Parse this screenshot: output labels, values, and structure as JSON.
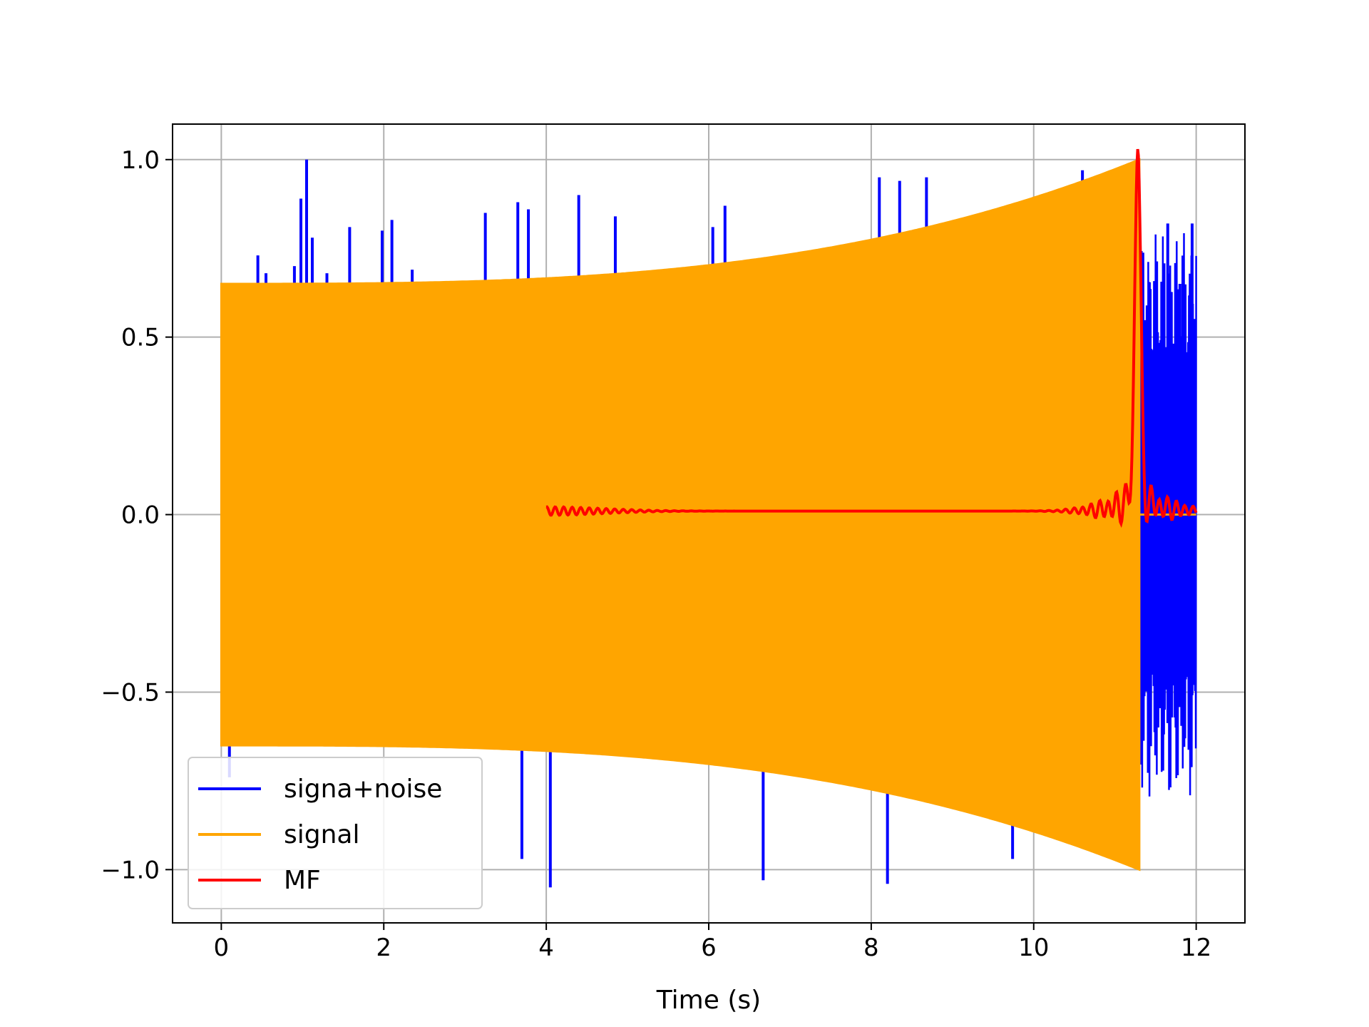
{
  "chart_data": {
    "type": "line",
    "title": "",
    "xlabel": "Time (s)",
    "ylabel": "",
    "xlim": [
      -0.6,
      12.6
    ],
    "ylim": [
      -1.15,
      1.1
    ],
    "xticks": [
      0,
      2,
      4,
      6,
      8,
      10,
      12
    ],
    "yticks": [
      -1.0,
      -0.5,
      0.0,
      0.5,
      1.0
    ],
    "xtick_labels": [
      "0",
      "2",
      "4",
      "6",
      "8",
      "10",
      "12"
    ],
    "ytick_labels": [
      "−1.0",
      "−0.5",
      "0.0",
      "0.5",
      "1.0"
    ],
    "grid": true,
    "legend_position": "lower-left",
    "series": [
      {
        "name": "signa+noise",
        "color": "#0000ff",
        "x_range": [
          0,
          12
        ],
        "description_values": {
          "envelope_start": 0.6,
          "envelope_peak": 1.0,
          "spikes": [
            {
              "x": 0.05,
              "y": 0.58
            },
            {
              "x": 0.1,
              "y": -0.74
            },
            {
              "x": 0.25,
              "y": 0.6
            },
            {
              "x": 0.45,
              "y": 0.73
            },
            {
              "x": 0.55,
              "y": 0.68
            },
            {
              "x": 0.9,
              "y": 0.7
            },
            {
              "x": 0.98,
              "y": 0.89
            },
            {
              "x": 1.05,
              "y": 1.0
            },
            {
              "x": 1.12,
              "y": 0.78
            },
            {
              "x": 1.3,
              "y": 0.68
            },
            {
              "x": 1.58,
              "y": 0.81
            },
            {
              "x": 1.98,
              "y": 0.8
            },
            {
              "x": 2.1,
              "y": 0.83
            },
            {
              "x": 2.35,
              "y": 0.69
            },
            {
              "x": 3.25,
              "y": 0.85
            },
            {
              "x": 3.65,
              "y": 0.88
            },
            {
              "x": 3.78,
              "y": 0.86
            },
            {
              "x": 4.4,
              "y": 0.9
            },
            {
              "x": 4.85,
              "y": 0.84
            },
            {
              "x": 6.05,
              "y": 0.81
            },
            {
              "x": 6.2,
              "y": 0.87
            },
            {
              "x": 8.1,
              "y": 0.95
            },
            {
              "x": 8.35,
              "y": 0.94
            },
            {
              "x": 8.68,
              "y": 0.95
            },
            {
              "x": 10.6,
              "y": 0.97
            },
            {
              "x": 3.7,
              "y": -0.97
            },
            {
              "x": 4.05,
              "y": -1.05
            },
            {
              "x": 6.67,
              "y": -1.03
            },
            {
              "x": 8.2,
              "y": -1.04
            },
            {
              "x": 9.74,
              "y": -0.97
            },
            {
              "x": 11.65,
              "y": 0.82
            },
            {
              "x": 11.8,
              "y": 0.65
            },
            {
              "x": 11.95,
              "y": 0.82
            }
          ]
        }
      },
      {
        "name": "signal",
        "color": "#ffa500",
        "x_range": [
          0,
          11.3
        ],
        "envelope_start": 0.65,
        "envelope_end": 1.0,
        "after_end_value": 0.0
      },
      {
        "name": "MF",
        "color": "#ff0000",
        "x_range": [
          4,
          12
        ],
        "baseline": 0.01,
        "peak": {
          "x": 11.28,
          "y": 1.0
        },
        "end_value": 0.01
      }
    ]
  }
}
